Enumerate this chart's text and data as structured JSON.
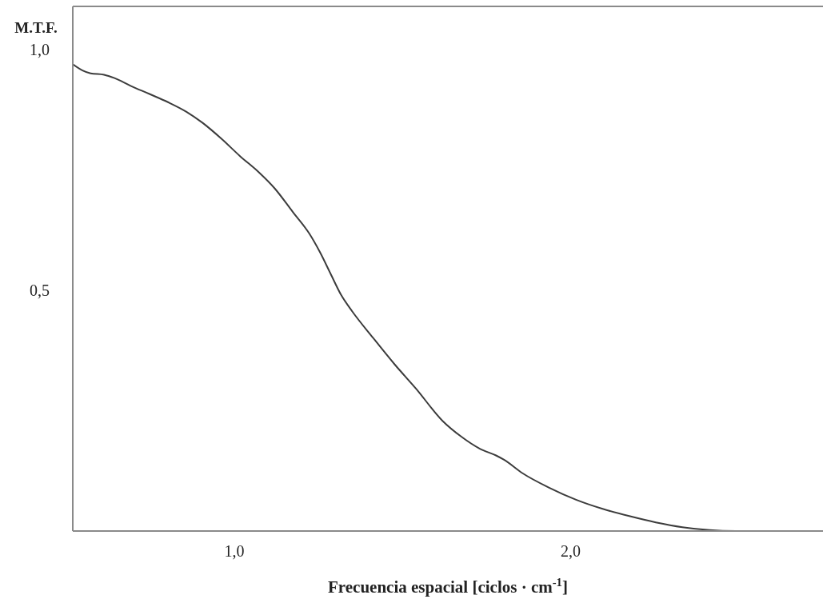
{
  "chart_data": {
    "type": "line",
    "xlabel": "Frecuencia espacial [ciclos · cm$^{-1}$]",
    "ylabel": "M.T.F.",
    "xlim": [
      0.52,
      2.75
    ],
    "xticks": [
      {
        "value": 1,
        "label": "1,0"
      },
      {
        "value": 2,
        "label": "2,0"
      }
    ],
    "ylim": [
      0,
      1.09
    ],
    "yticks": [
      {
        "value": 0.5,
        "label": "0,5"
      },
      {
        "value": 1,
        "label": "1,0"
      }
    ],
    "series": [
      {
        "color": "#3c3c3c",
        "x": [
          0.52,
          0.549,
          0.573,
          0.613,
          0.644,
          0.692,
          0.748,
          0.803,
          0.858,
          0.906,
          0.962,
          1.017,
          1.072,
          1.12,
          1.175,
          1.223,
          1.255,
          1.286,
          1.318,
          1.35,
          1.413,
          1.477,
          1.54,
          1.619,
          1.675,
          1.73,
          1.778,
          1.802,
          1.857,
          1.936,
          2.016,
          2.095,
          2.174,
          2.253,
          2.332,
          2.412,
          2.491,
          2.75
        ],
        "values": [
          0.97,
          0.957,
          0.951,
          0.948,
          0.941,
          0.925,
          0.908,
          0.891,
          0.871,
          0.848,
          0.815,
          0.779,
          0.746,
          0.712,
          0.662,
          0.618,
          0.579,
          0.535,
          0.49,
          0.457,
          0.401,
          0.346,
          0.296,
          0.229,
          0.196,
          0.171,
          0.157,
          0.148,
          0.12,
          0.09,
          0.065,
          0.046,
          0.031,
          0.018,
          0.008,
          0.002,
          0,
          0
        ]
      }
    ]
  }
}
